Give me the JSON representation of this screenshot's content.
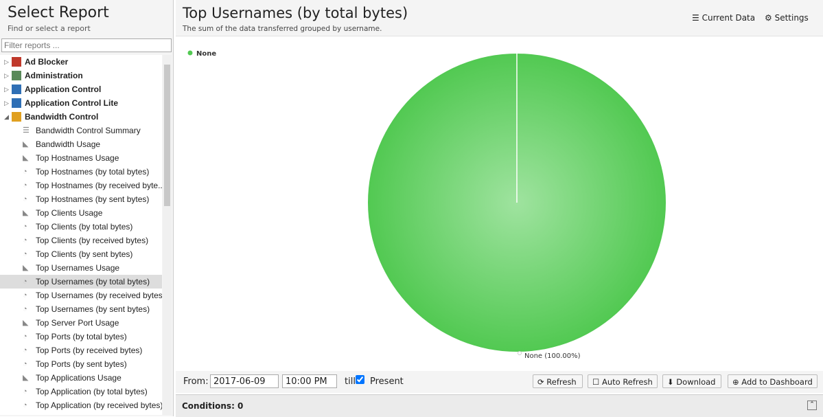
{
  "sidebar": {
    "title": "Select Report",
    "subtitle": "Find or select a report",
    "filter_placeholder": "Filter reports ...",
    "groups": [
      {
        "label": "Ad Blocker",
        "color": "#c0392b",
        "expanded": false
      },
      {
        "label": "Administration",
        "color": "#5a8a5a",
        "expanded": false
      },
      {
        "label": "Application Control",
        "color": "#2f6fb5",
        "expanded": false
      },
      {
        "label": "Application Control Lite",
        "color": "#2f6fb5",
        "expanded": false
      },
      {
        "label": "Bandwidth Control",
        "color": "#e0a020",
        "expanded": true,
        "items": [
          {
            "label": "Bandwidth Control Summary",
            "icon": "list"
          },
          {
            "label": "Bandwidth Usage",
            "icon": "area"
          },
          {
            "label": "Top Hostnames Usage",
            "icon": "area"
          },
          {
            "label": "Top Hostnames (by total bytes)",
            "icon": "pie"
          },
          {
            "label": "Top Hostnames (by received byte...",
            "icon": "pie"
          },
          {
            "label": "Top Hostnames (by sent bytes)",
            "icon": "pie"
          },
          {
            "label": "Top Clients Usage",
            "icon": "area"
          },
          {
            "label": "Top Clients (by total bytes)",
            "icon": "pie"
          },
          {
            "label": "Top Clients (by received bytes)",
            "icon": "pie"
          },
          {
            "label": "Top Clients (by sent bytes)",
            "icon": "pie"
          },
          {
            "label": "Top Usernames Usage",
            "icon": "area"
          },
          {
            "label": "Top Usernames (by total bytes)",
            "icon": "pie",
            "selected": true
          },
          {
            "label": "Top Usernames (by received bytes)",
            "icon": "pie"
          },
          {
            "label": "Top Usernames (by sent bytes)",
            "icon": "pie"
          },
          {
            "label": "Top Server Port Usage",
            "icon": "area"
          },
          {
            "label": "Top Ports (by total bytes)",
            "icon": "pie"
          },
          {
            "label": "Top Ports (by received bytes)",
            "icon": "pie"
          },
          {
            "label": "Top Ports (by sent bytes)",
            "icon": "pie"
          },
          {
            "label": "Top Applications Usage",
            "icon": "area"
          },
          {
            "label": "Top Application (by total bytes)",
            "icon": "pie"
          },
          {
            "label": "Top Application (by received bytes)",
            "icon": "pie"
          }
        ]
      }
    ]
  },
  "header": {
    "title": "Top Usernames (by total bytes)",
    "subtitle": "The sum of the data transferred grouped by username.",
    "current_data": "Current Data",
    "settings": "Settings"
  },
  "chart_data": {
    "type": "pie",
    "categories": [
      "None"
    ],
    "values": [
      100
    ],
    "value_labels": [
      "None (100.00%)"
    ],
    "colors": [
      "#52c952"
    ]
  },
  "toolbar": {
    "from_label": "From:",
    "date": "2017-06-09",
    "time": "10:00 PM",
    "till_label": "till",
    "present_checked": true,
    "present_label": "Present",
    "buttons": [
      "Refresh",
      "Auto Refresh",
      "Download",
      "Add to Dashboard"
    ]
  },
  "conditions": {
    "label": "Conditions: 0"
  }
}
